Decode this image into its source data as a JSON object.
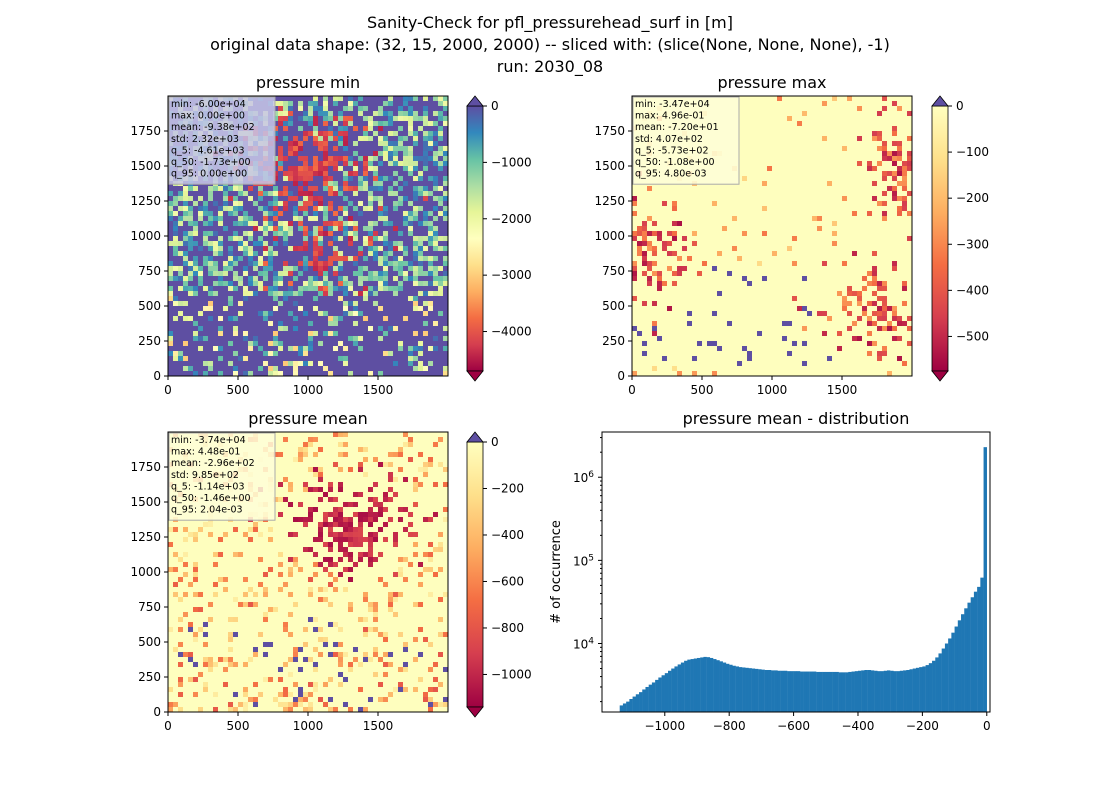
{
  "figure": {
    "title_lines": [
      "Sanity-Check for pfl_pressurehead_surf in [m]",
      "original data shape: (32, 15, 2000, 2000) -- sliced with: (slice(None, None, None), -1)",
      "run: 2030_08"
    ]
  },
  "chart_data": [
    {
      "type": "heatmap",
      "title": "pressure min",
      "colormap": "Spectral",
      "background_color": "#5e4fa2",
      "x_ticks": [
        "0",
        "500",
        "1000",
        "1500"
      ],
      "y_ticks": [
        "0",
        "250",
        "500",
        "750",
        "1000",
        "1250",
        "1500",
        "1750"
      ],
      "xlim": [
        0,
        2000
      ],
      "ylim": [
        0,
        2000
      ],
      "colorbar": {
        "ticks": [
          "0",
          "−1000",
          "−2000",
          "−3000",
          "−4000"
        ],
        "range": [
          -4700,
          0
        ],
        "extend": "both"
      },
      "stats": [
        "min: -6.00e+04",
        "max: 0.00e+00",
        "mean: -9.38e+02",
        "std: 2.32e+03",
        "q_5: -4.61e+03",
        "q_50: -1.73e+00",
        "q_95: 0.00e+00"
      ],
      "stats_box_color": "#c7c7e8"
    },
    {
      "type": "heatmap",
      "title": "pressure max",
      "colormap": "Spectral",
      "background_color": "#fefebe",
      "x_ticks": [
        "0",
        "500",
        "1000",
        "1500"
      ],
      "y_ticks": [
        "0",
        "250",
        "500",
        "750",
        "1000",
        "1250",
        "1500",
        "1750"
      ],
      "xlim": [
        0,
        2000
      ],
      "ylim": [
        0,
        2000
      ],
      "colorbar": {
        "ticks": [
          "0",
          "−100",
          "−200",
          "−300",
          "−400",
          "−500"
        ],
        "range": [
          -575,
          0
        ],
        "extend": "both"
      },
      "stats": [
        "min: -3.47e+04",
        "max: 4.96e-01",
        "mean: -7.20e+01",
        "std: 4.07e+02",
        "q_5: -5.73e+02",
        "q_50: -1.08e+00",
        "q_95: 4.80e-03"
      ],
      "stats_box_color": "#fefed8"
    },
    {
      "type": "heatmap",
      "title": "pressure mean",
      "colormap": "Spectral",
      "background_color": "#fefebe",
      "x_ticks": [
        "0",
        "500",
        "1000",
        "1500"
      ],
      "y_ticks": [
        "0",
        "250",
        "500",
        "750",
        "1000",
        "1250",
        "1500",
        "1750"
      ],
      "xlim": [
        0,
        2000
      ],
      "ylim": [
        0,
        2000
      ],
      "colorbar": {
        "ticks": [
          "0",
          "−200",
          "−400",
          "−600",
          "−800",
          "−1000"
        ],
        "range": [
          -1140,
          0
        ],
        "extend": "both"
      },
      "stats": [
        "min: -3.74e+04",
        "max: 4.48e-01",
        "mean: -2.96e+02",
        "std: 9.85e+02",
        "q_5: -1.14e+03",
        "q_50: -1.46e+00",
        "q_95: 2.04e-03"
      ],
      "stats_box_color": "#fefed8"
    },
    {
      "type": "bar",
      "title": "pressure mean - distribution",
      "ylabel": "# of occurrence",
      "xlabel": "",
      "yscale": "log",
      "bar_color": "#1f77b4",
      "x_ticks": [
        "−1000",
        "−800",
        "−600",
        "−400",
        "−200",
        "0"
      ],
      "x_tick_values": [
        -1000,
        -800,
        -600,
        -400,
        -200,
        0
      ],
      "y_ticks": [
        "10^4",
        "10^5",
        "10^6"
      ],
      "y_tick_values": [
        10000,
        100000,
        1000000
      ],
      "xlim": [
        -1195,
        10
      ],
      "ylim": [
        1500,
        3500000
      ],
      "x": [
        -1135,
        -1125,
        -1115,
        -1105,
        -1095,
        -1085,
        -1075,
        -1065,
        -1055,
        -1045,
        -1035,
        -1025,
        -1015,
        -1005,
        -995,
        -985,
        -975,
        -965,
        -955,
        -945,
        -935,
        -925,
        -915,
        -905,
        -895,
        -885,
        -875,
        -865,
        -855,
        -845,
        -835,
        -825,
        -815,
        -805,
        -795,
        -785,
        -775,
        -765,
        -755,
        -745,
        -735,
        -725,
        -715,
        -705,
        -695,
        -685,
        -675,
        -665,
        -655,
        -645,
        -635,
        -625,
        -615,
        -605,
        -595,
        -585,
        -575,
        -565,
        -555,
        -545,
        -535,
        -525,
        -515,
        -505,
        -495,
        -485,
        -475,
        -465,
        -455,
        -445,
        -435,
        -425,
        -415,
        -405,
        -395,
        -385,
        -375,
        -365,
        -355,
        -345,
        -335,
        -325,
        -315,
        -305,
        -295,
        -285,
        -275,
        -265,
        -255,
        -245,
        -235,
        -225,
        -215,
        -205,
        -195,
        -185,
        -175,
        -165,
        -155,
        -145,
        -135,
        -125,
        -115,
        -105,
        -95,
        -85,
        -75,
        -65,
        -55,
        -45,
        -35,
        -25,
        -15,
        -5
      ],
      "values": [
        1800,
        1900,
        2000,
        2150,
        2300,
        2450,
        2600,
        2800,
        3000,
        3200,
        3400,
        3650,
        3900,
        4150,
        4400,
        4700,
        5000,
        5300,
        5600,
        5900,
        6200,
        6400,
        6500,
        6600,
        6700,
        6800,
        6900,
        6850,
        6700,
        6500,
        6300,
        6100,
        5900,
        5700,
        5550,
        5400,
        5300,
        5200,
        5150,
        5100,
        5050,
        5000,
        4950,
        4900,
        4850,
        4800,
        4800,
        4750,
        4750,
        4700,
        4700,
        4700,
        4650,
        4650,
        4650,
        4650,
        4600,
        4600,
        4600,
        4600,
        4600,
        4550,
        4550,
        4550,
        4550,
        4550,
        4550,
        4550,
        4500,
        4500,
        4500,
        4550,
        4600,
        4650,
        4700,
        4750,
        4800,
        4800,
        4750,
        4700,
        4650,
        4650,
        4700,
        4750,
        4700,
        4650,
        4650,
        4700,
        4750,
        4800,
        4900,
        5000,
        5100,
        5200,
        5300,
        5500,
        5800,
        6200,
        6800,
        7600,
        8700,
        10000,
        11500,
        13500,
        16000,
        19000,
        22500,
        26500,
        31000,
        36000,
        42000,
        48000,
        62000,
        2300000
      ]
    }
  ]
}
